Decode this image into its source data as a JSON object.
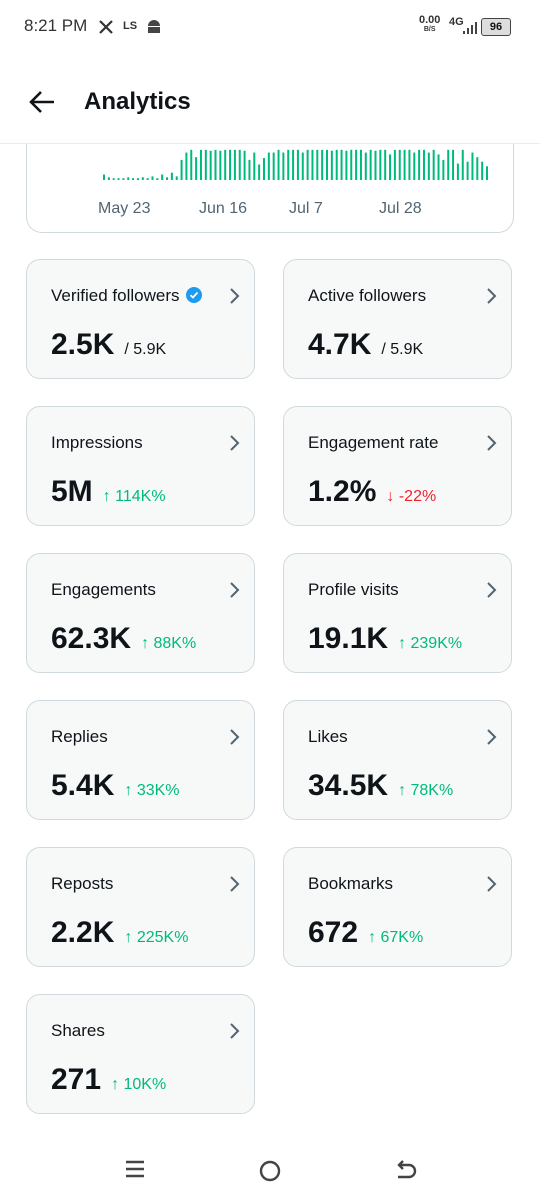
{
  "status_bar": {
    "time": "8:21 PM",
    "ls": "LS",
    "net_speed": "0.00",
    "net_unit": "B/S",
    "network": "4G",
    "battery": "96"
  },
  "header": {
    "title": "Analytics"
  },
  "chart": {
    "type": "bar",
    "x_labels": [
      "May 23",
      "Jun 16",
      "Jul 7",
      "Jul 28"
    ],
    "ylim": [
      0,
      35
    ],
    "values": [
      6,
      3,
      2,
      2,
      2,
      3,
      2,
      2,
      3,
      2,
      4,
      2,
      6,
      3,
      8,
      4,
      22,
      30,
      33,
      25,
      33,
      33,
      32,
      33,
      32,
      33,
      33,
      33,
      33,
      32,
      22,
      30,
      17,
      24,
      30,
      30,
      33,
      30,
      33,
      33,
      33,
      30,
      33,
      33,
      33,
      33,
      33,
      32,
      33,
      33,
      32,
      33,
      33,
      33,
      30,
      33,
      32,
      33,
      33,
      28,
      33,
      33,
      33,
      33,
      30,
      33,
      33,
      30,
      33,
      28,
      22,
      33,
      33,
      18,
      33,
      20,
      30,
      25,
      20,
      15
    ],
    "color": "#00ba7c"
  },
  "cards": [
    {
      "label": "Verified followers",
      "value": "2.5K",
      "total": "/ 5.9K"
    },
    {
      "label": "Active followers",
      "value": "4.7K",
      "total": "/ 5.9K"
    },
    {
      "label": "Impressions",
      "value": "5M",
      "change": "↑ 114K%",
      "trend": "up"
    },
    {
      "label": "Engagement rate",
      "value": "1.2%",
      "change": "↓ -22%",
      "trend": "down"
    },
    {
      "label": "Engagements",
      "value": "62.3K",
      "change": "↑ 88K%",
      "trend": "up"
    },
    {
      "label": "Profile visits",
      "value": "19.1K",
      "change": "↑ 239K%",
      "trend": "up"
    },
    {
      "label": "Replies",
      "value": "5.4K",
      "change": "↑ 33K%",
      "trend": "up"
    },
    {
      "label": "Likes",
      "value": "34.5K",
      "change": "↑ 78K%",
      "trend": "up"
    },
    {
      "label": "Reposts",
      "value": "2.2K",
      "change": "↑ 225K%",
      "trend": "up"
    },
    {
      "label": "Bookmarks",
      "value": "672",
      "change": "↑ 67K%",
      "trend": "up"
    },
    {
      "label": "Shares",
      "value": "271",
      "change": "↑ 10K%",
      "trend": "up"
    }
  ]
}
